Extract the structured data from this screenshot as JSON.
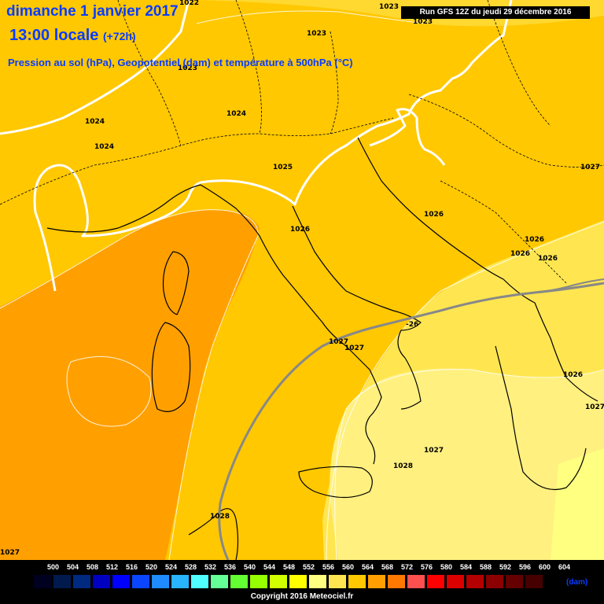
{
  "header": {
    "date_line": "dimanche 1 janvier 2017",
    "time_line": "13:00 locale",
    "lead": "(+72h)",
    "description": "Pression au sol (hPa), Geopotentiel (dam) et température à 500hPa (°C)",
    "run": "Run GFS 12Z du jeudi 29 décembre 2016"
  },
  "pressure_labels": [
    "1022",
    "1023",
    "1023",
    "1023",
    "1023",
    "1024",
    "1024",
    "1024",
    "1025",
    "1026",
    "1026",
    "1026",
    "1026",
    "1026",
    "1027",
    "1027",
    "1027",
    "1027",
    "1027",
    "1028",
    "1028",
    "1026",
    "1027"
  ],
  "isotherm_label": "-26",
  "legend": {
    "values": [
      "500",
      "504",
      "508",
      "512",
      "516",
      "520",
      "524",
      "528",
      "532",
      "536",
      "540",
      "544",
      "548",
      "552",
      "556",
      "560",
      "564",
      "568",
      "572",
      "576",
      "580",
      "584",
      "588",
      "592",
      "596",
      "600",
      "604"
    ],
    "colors": [
      "#000020",
      "#001a4d",
      "#002a80",
      "#0000c0",
      "#0000ff",
      "#0a46ff",
      "#1e8cff",
      "#28b4ff",
      "#50ffff",
      "#64ff96",
      "#64ff32",
      "#96ff00",
      "#d2ff00",
      "#ffff00",
      "#ffff80",
      "#ffe650",
      "#ffc800",
      "#ffa000",
      "#ff7800",
      "#ff5050",
      "#ff0000",
      "#dc0000",
      "#b40000",
      "#8c0000",
      "#640000",
      "#460000",
      "#000000"
    ],
    "unit": "(dam)"
  },
  "copyright": "Copyright 2016 Meteociel.fr",
  "map_colors": {
    "band_552": "#ffff80",
    "band_556": "#ffe650",
    "band_560": "#ffc800",
    "band_564": "#ffa000",
    "isobar": "#ffffff",
    "geopotential": "#ffffff",
    "isotherm": "#888888",
    "coast": "#000000"
  }
}
